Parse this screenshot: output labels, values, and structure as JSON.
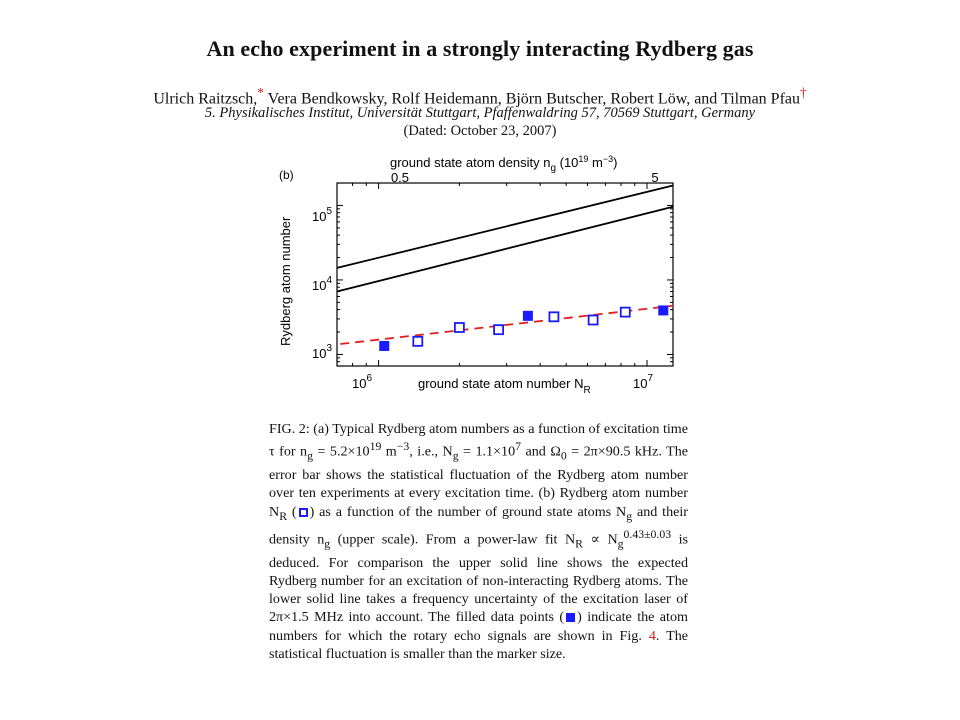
{
  "paper": {
    "title": "An echo experiment in a strongly interacting Rydberg gas",
    "authors": "Ulrich Raitzsch,",
    "author_mark_1": "*",
    "authors_rest": " Vera Bendkowsky, Rolf Heidemann, Björn Butscher, Robert Löw, and Tilman Pfau",
    "author_mark_2": "†",
    "affiliation": "5. Physikalisches Institut, Universität Stuttgart, Pfaffenwaldring 57, 70569 Stuttgart, Germany",
    "dated": "(Dated: October 23, 2007)"
  },
  "figure": {
    "panel_label": "(b)",
    "top_axis_label": "ground state atom density n",
    "top_axis_sub": "g",
    "top_axis_unit": " (10",
    "top_axis_unit_exp": "19",
    "top_axis_unit_tail": " m",
    "top_axis_unit_exp2": "−3",
    "top_axis_close": ")",
    "top_ticks": [
      "0.5",
      "5"
    ],
    "ylabel": "Rydberg atom number",
    "xlabel": "ground state atom number N",
    "xlabel_sub": "R",
    "y_tick_base": "10",
    "y_tick_exps": [
      "3",
      "4",
      "5"
    ],
    "x_tick_base": "10",
    "x_tick_exps": [
      "6",
      "7"
    ]
  },
  "chart_data": {
    "type": "scatter",
    "x_scale": "log",
    "y_scale": "log",
    "xlim": [
      700000,
      12500000
    ],
    "ylim": [
      700,
      200000
    ],
    "series": [
      {
        "marker": "open-square",
        "color": "#1a1aff",
        "x": [
          1400000,
          2000000,
          2800000,
          4500000,
          6300000,
          8300000
        ],
        "y": [
          1500,
          2300,
          2150,
          3200,
          2900,
          3700
        ]
      },
      {
        "marker": "filled-square",
        "color": "#1a1aff",
        "x": [
          1050000,
          3600000,
          11500000
        ],
        "y": [
          1300,
          3300,
          3900
        ]
      },
      {
        "style": "dashed-fit",
        "color": "#e02020",
        "x": [
          720000,
          12500000
        ],
        "y": [
          1380,
          4500
        ]
      },
      {
        "style": "solid-upper",
        "color": "#000000",
        "x": [
          700000,
          12500000
        ],
        "y": [
          14500,
          185000
        ]
      },
      {
        "style": "solid-lower",
        "color": "#000000",
        "x": [
          700000,
          12500000
        ],
        "y": [
          7000,
          96000
        ]
      }
    ]
  },
  "caption": {
    "t1": "FIG. 2: (a) Typical Rydberg atom numbers as a function of excitation time τ for n",
    "t1_sub": "g",
    "t2": " = 5.2×10",
    "t2_sup": "19",
    "t3": " m",
    "t3_sup": "−3",
    "t4": ", i.e., N",
    "t4_sub": "g",
    "t5": " = 1.1×10",
    "t5_sup": "7",
    "t6": " and Ω",
    "t6_sub": "0",
    "t7": " = 2π×90.5 kHz. The error bar shows the statistical fluctuation of the Rydberg atom number over ten experiments at every excitation time. (b) Rydberg atom number N",
    "t7_sub": "R",
    "t8": " (",
    "t9": ") as a function of the number of ground state atoms N",
    "t9_sub": "g",
    "t10": " and their density n",
    "t10_sub": "g",
    "t11": " (upper scale). From a power-law fit N",
    "t11_sub": "R",
    "t12": " ∝ N",
    "t12_sub": "g",
    "t12_sup": "0.43±0.03",
    "t13": " is deduced. For comparison the upper solid line shows the expected Rydberg number for an excitation of non-interacting Rydberg atoms. The lower solid line takes a frequency uncertainty of the excitation laser of 2π×1.5 MHz into account. The filled data points (",
    "t14": ") indicate the atom numbers for which the rotary echo signals are shown in Fig. ",
    "fig_ref": "4",
    "t15": ". The statistical fluctuation is smaller than the marker size."
  }
}
